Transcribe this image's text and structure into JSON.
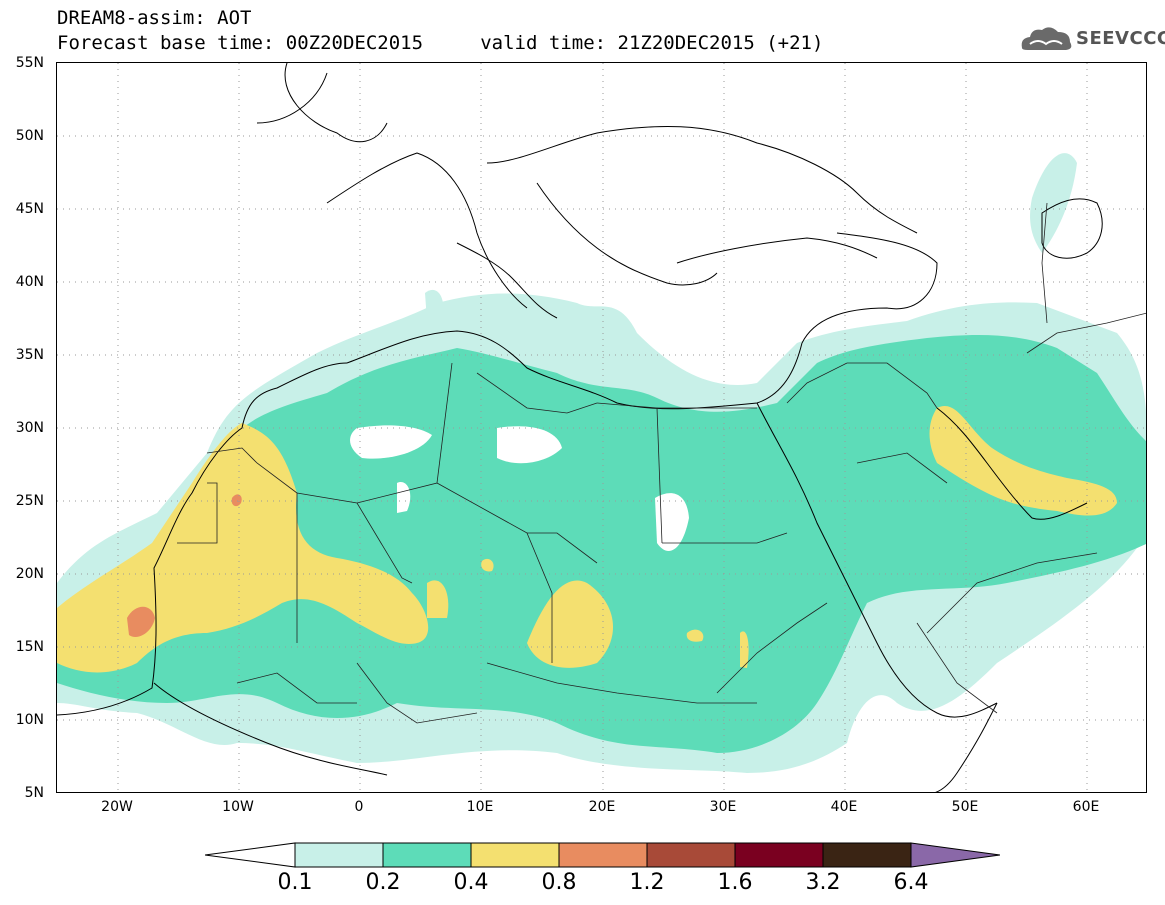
{
  "header": {
    "line1": "DREAM8-assim: AOT",
    "line2": "Forecast base time: 00Z20DEC2015     valid time: 21Z20DEC2015 (+21)",
    "logo_text": "SEEVCCC"
  },
  "map": {
    "lon_range": [
      -25,
      65
    ],
    "lat_range": [
      5,
      55
    ],
    "lat_labels": [
      "55N",
      "50N",
      "45N",
      "40N",
      "35N",
      "30N",
      "25N",
      "20N",
      "15N",
      "10N",
      "5N"
    ],
    "lon_labels": [
      "20W",
      "10W",
      "0",
      "10E",
      "20E",
      "30E",
      "40E",
      "50E",
      "60E"
    ],
    "gridlines": "dotted",
    "field": "AOT"
  },
  "colorbar": {
    "labels": [
      "0.1",
      "0.2",
      "0.4",
      "0.8",
      "1.2",
      "1.6",
      "3.2",
      "6.4"
    ],
    "colors": [
      "#ffffff",
      "#c8f0e8",
      "#5ddcb8",
      "#f4e070",
      "#e88c60",
      "#a84a38",
      "#7a0020",
      "#3a2414",
      "#8a68a8"
    ]
  }
}
